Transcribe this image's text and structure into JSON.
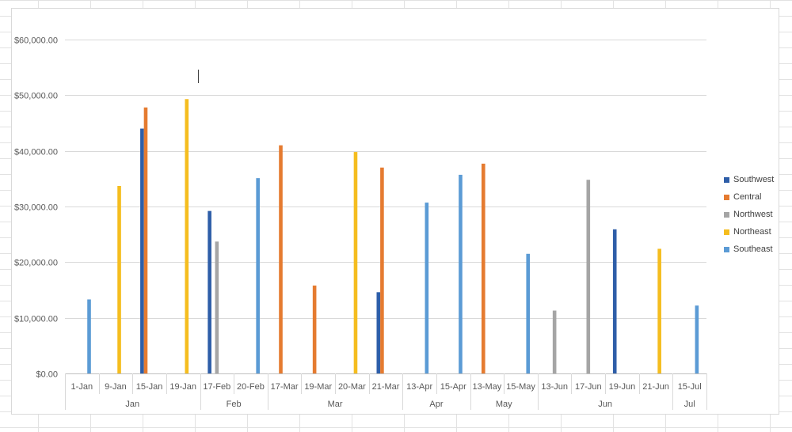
{
  "chart_data": {
    "type": "bar",
    "title": "",
    "xlabel": "",
    "ylabel": "",
    "ylim": [
      0,
      60000
    ],
    "y_ticks": [
      "$0.00",
      "$10,000.00",
      "$20,000.00",
      "$30,000.00",
      "$40,000.00",
      "$50,000.00",
      "$60,000.00"
    ],
    "grid": true,
    "legend_position": "right",
    "categories": [
      "1-Jan",
      "9-Jan",
      "15-Jan",
      "19-Jan",
      "17-Feb",
      "20-Feb",
      "17-Mar",
      "19-Mar",
      "20-Mar",
      "21-Mar",
      "13-Apr",
      "15-Apr",
      "13-May",
      "15-May",
      "13-Jun",
      "17-Jun",
      "19-Jun",
      "21-Jun",
      "15-Jul"
    ],
    "groups": [
      {
        "label": "Jan",
        "count": 4
      },
      {
        "label": "Feb",
        "count": 2
      },
      {
        "label": "Mar",
        "count": 4
      },
      {
        "label": "Apr",
        "count": 2
      },
      {
        "label": "May",
        "count": 2
      },
      {
        "label": "Jun",
        "count": 4
      },
      {
        "label": "Jul",
        "count": 1
      }
    ],
    "series": [
      {
        "name": "Southwest",
        "color": "#2e5ea8",
        "values": [
          null,
          null,
          44000,
          null,
          29200,
          null,
          null,
          null,
          null,
          14600,
          null,
          null,
          null,
          null,
          null,
          null,
          25900,
          null,
          null
        ]
      },
      {
        "name": "Central",
        "color": "#e57b30",
        "values": [
          null,
          null,
          47800,
          null,
          null,
          null,
          41000,
          15800,
          null,
          37000,
          null,
          null,
          37700,
          null,
          null,
          null,
          null,
          null,
          null
        ]
      },
      {
        "name": "Northwest",
        "color": "#a5a5a5",
        "values": [
          null,
          null,
          null,
          null,
          23700,
          null,
          null,
          null,
          null,
          null,
          null,
          null,
          null,
          null,
          11300,
          34800,
          null,
          null,
          null
        ]
      },
      {
        "name": "Northeast",
        "color": "#f5bd1f",
        "values": [
          null,
          33700,
          null,
          49300,
          null,
          null,
          null,
          null,
          39800,
          null,
          null,
          null,
          null,
          null,
          null,
          null,
          null,
          22400,
          null
        ]
      },
      {
        "name": "Southeast",
        "color": "#5b9bd5",
        "values": [
          13300,
          null,
          null,
          null,
          null,
          35100,
          null,
          null,
          null,
          null,
          30700,
          35700,
          null,
          21500,
          null,
          null,
          null,
          null,
          12200
        ]
      }
    ]
  }
}
